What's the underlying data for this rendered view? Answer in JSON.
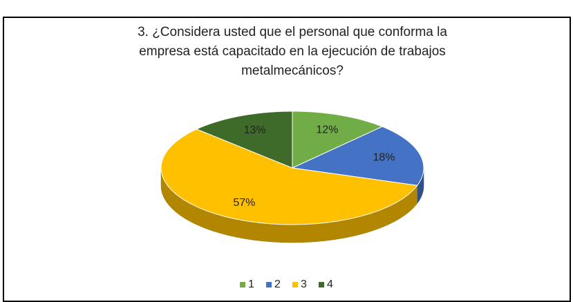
{
  "chart_data": {
    "type": "pie3d",
    "title_lines": [
      "3. ¿Considera usted que el personal que conforma la",
      "empresa está capacitado en la ejecución de trabajos",
      "metalmecánicos?"
    ],
    "categories": [
      "1",
      "2",
      "3",
      "4"
    ],
    "values": [
      12,
      18,
      57,
      13
    ],
    "value_labels": [
      "12%",
      "18%",
      "57%",
      "13%"
    ],
    "colors": [
      "#70ad47",
      "#4472c4",
      "#ffc000",
      "#3f6b2a"
    ],
    "legend": "bottom"
  }
}
